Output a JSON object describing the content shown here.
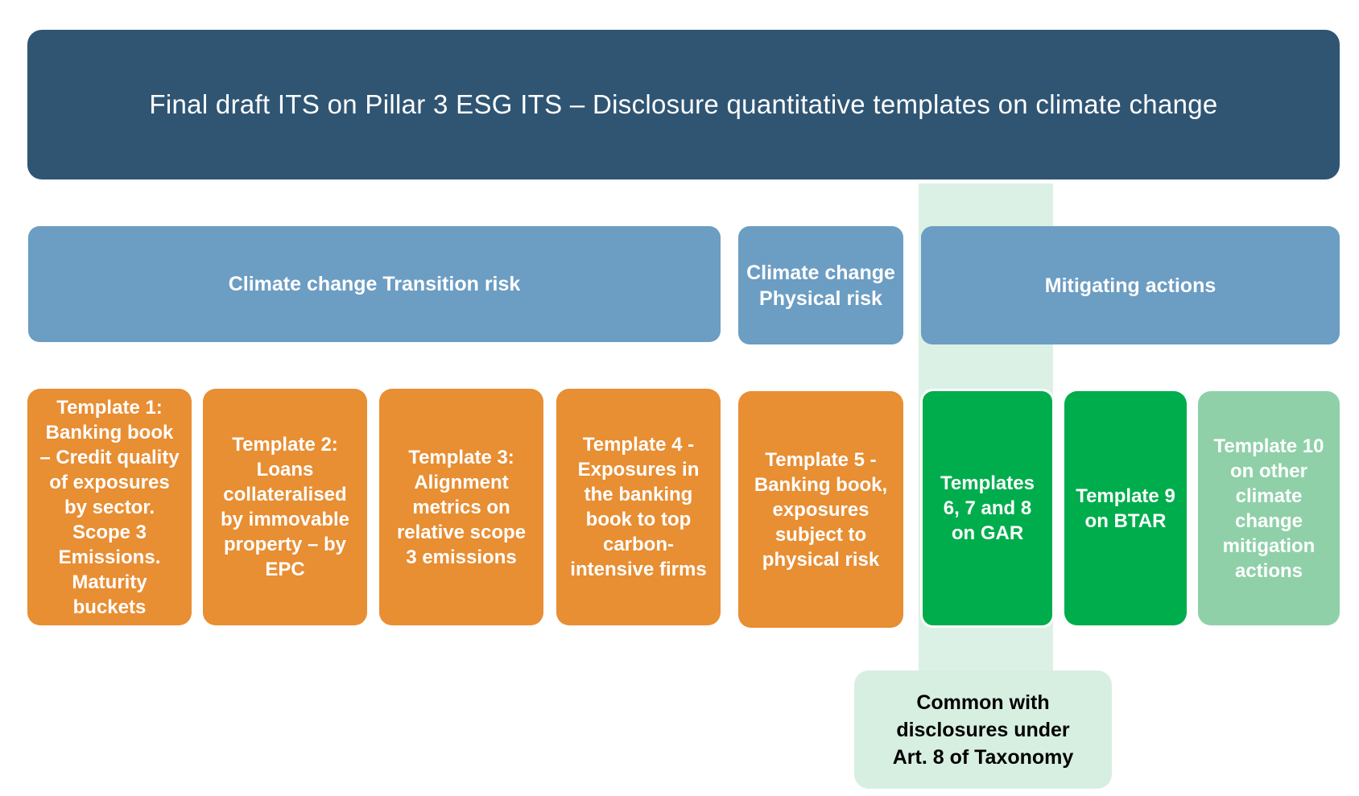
{
  "title": "Final draft ITS on Pillar 3 ESG ITS – Disclosure quantitative templates on climate change",
  "categories": {
    "transition": "Climate change Transition risk",
    "physical": "Climate change\nPhysical risk",
    "mitigating": "Mitigating actions"
  },
  "templates": [
    "Template 1:\nBanking book\n– Credit quality\nof exposures\nby sector.\nScope 3\nEmissions.\nMaturity\nbuckets",
    "Template 2:\nLoans\ncollateralised\nby immovable\nproperty – by\nEPC",
    "Template 3:\nAlignment\nmetrics on\nrelative scope\n3 emissions",
    "Template 4 -\nExposures in\nthe banking\nbook to top\ncarbon-\nintensive firms",
    "Template 5 -\nBanking book,\nexposures\nsubject to\nphysical risk",
    "Templates\n6, 7 and 8\non GAR",
    "Template 9\non BTAR",
    "Template 10\non other\nclimate\nchange\nmitigation\nactions"
  ],
  "common_note": "Common with\ndisclosures under\nArt. 8 of Taxonomy",
  "colors": {
    "title_bg": "#2f5573",
    "category_bg": "#6c9dc3",
    "template_orange": "#e88e33",
    "template_green": "#00ad4c",
    "template_light_green": "#8fd0a8",
    "highlight": "#d5eee0"
  }
}
